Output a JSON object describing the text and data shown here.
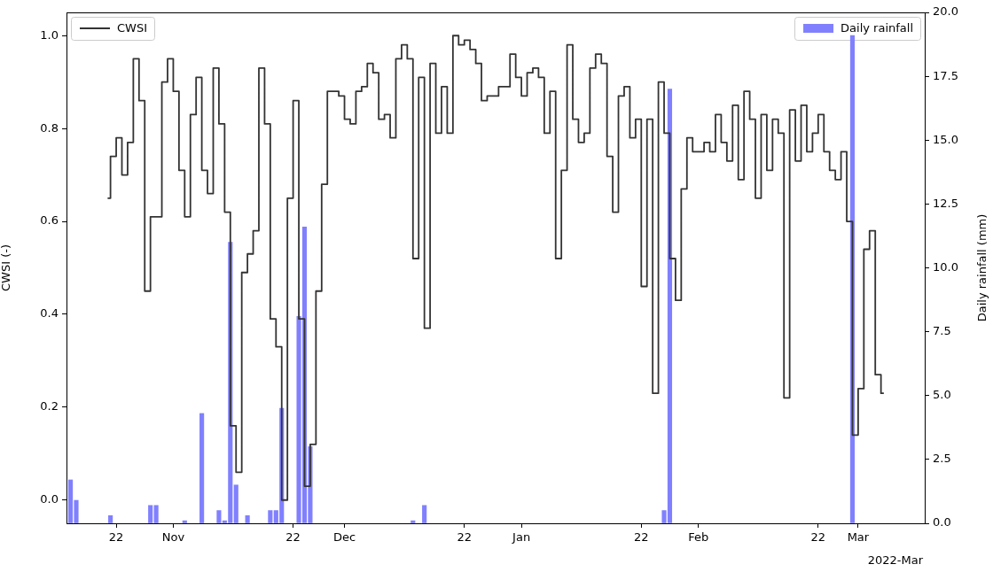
{
  "chart_data": {
    "type": "bar",
    "ylabel": "CWSI (-)",
    "y2label": "Daily rainfall (mm)",
    "grid": false,
    "legend": "top",
    "annotations": [
      "2022-Mar"
    ],
    "xlim": [
      "2021-10-13T07:00",
      "2022-03-12T16:00"
    ],
    "xticks": [
      {
        "value": "2021-10-22",
        "label": "22"
      },
      {
        "value": "2021-11-01",
        "label": "Nov"
      },
      {
        "value": "2021-11-22",
        "label": "22"
      },
      {
        "value": "2021-12-01",
        "label": "Dec"
      },
      {
        "value": "2021-12-22",
        "label": "22"
      },
      {
        "value": "2022-01-01",
        "label": "Jan"
      },
      {
        "value": "2022-01-22",
        "label": "22"
      },
      {
        "value": "2022-02-01",
        "label": "Feb"
      },
      {
        "value": "2022-02-22",
        "label": "22"
      },
      {
        "value": "2022-03-01",
        "label": "Mar"
      }
    ],
    "ylim": [
      -0.05,
      1.05
    ],
    "yticks": [
      {
        "value": 0,
        "label": "0.0"
      },
      {
        "value": 0.2,
        "label": "0.2"
      },
      {
        "value": 0.4,
        "label": "0.4"
      },
      {
        "value": 0.6,
        "label": "0.6"
      },
      {
        "value": 0.8,
        "label": "0.8"
      },
      {
        "value": 1,
        "label": "1.0"
      }
    ],
    "y2lim": [
      0,
      20
    ],
    "y2ticks": [
      {
        "value": 0,
        "label": "0.0"
      },
      {
        "value": 2.5,
        "label": "2.5"
      },
      {
        "value": 5,
        "label": "5.0"
      },
      {
        "value": 7.5,
        "label": "7.5"
      },
      {
        "value": 10,
        "label": "10.0"
      },
      {
        "value": 12.5,
        "label": "12.5"
      },
      {
        "value": 15,
        "label": "15.0"
      },
      {
        "value": 17.5,
        "label": "17.5"
      },
      {
        "value": 20,
        "label": "20.0"
      }
    ],
    "series": [
      {
        "name": "CWSI",
        "type": "step",
        "color": "#333333",
        "x": [
          "2021-10-20T12:00",
          "2021-10-21T12:00",
          "2021-10-22T12:00",
          "2021-10-23T12:00",
          "2021-10-24T12:00",
          "2021-10-25T12:00",
          "2021-10-26T12:00",
          "2021-10-27T12:00",
          "2021-10-28T12:00",
          "2021-10-29T12:00",
          "2021-10-30T12:00",
          "2021-10-31T12:00",
          "2021-11-01T12:00",
          "2021-11-02T12:00",
          "2021-11-03T12:00",
          "2021-11-04T12:00",
          "2021-11-05T12:00",
          "2021-11-06T12:00",
          "2021-11-07T12:00",
          "2021-11-08T12:00",
          "2021-11-09T12:00",
          "2021-11-10T12:00",
          "2021-11-11T12:00",
          "2021-11-12T12:00",
          "2021-11-13T12:00",
          "2021-11-14T12:00",
          "2021-11-15T12:00",
          "2021-11-16T12:00",
          "2021-11-17T12:00",
          "2021-11-18T12:00",
          "2021-11-19T12:00",
          "2021-11-20T12:00",
          "2021-11-21T12:00",
          "2021-11-22T12:00",
          "2021-11-23T12:00",
          "2021-11-24T12:00",
          "2021-11-25T12:00",
          "2021-11-26T12:00",
          "2021-11-27T12:00",
          "2021-11-28T12:00",
          "2021-11-29T12:00",
          "2021-11-30T12:00",
          "2021-12-01T12:00",
          "2021-12-02T12:00",
          "2021-12-03T12:00",
          "2021-12-04T12:00",
          "2021-12-05T12:00",
          "2021-12-06T12:00",
          "2021-12-07T12:00",
          "2021-12-08T12:00",
          "2021-12-09T12:00",
          "2021-12-10T12:00",
          "2021-12-11T12:00",
          "2021-12-12T12:00",
          "2021-12-13T12:00",
          "2021-12-14T12:00",
          "2021-12-15T12:00",
          "2021-12-16T12:00",
          "2021-12-17T12:00",
          "2021-12-18T12:00",
          "2021-12-19T12:00",
          "2021-12-20T12:00",
          "2021-12-21T12:00",
          "2021-12-22T12:00",
          "2021-12-23T12:00",
          "2021-12-24T12:00",
          "2021-12-25T12:00",
          "2021-12-26T12:00",
          "2021-12-27T12:00",
          "2021-12-28T12:00",
          "2021-12-29T12:00",
          "2021-12-30T12:00",
          "2021-12-31T12:00",
          "2022-01-01T12:00",
          "2022-01-02T12:00",
          "2022-01-03T12:00",
          "2022-01-04T12:00",
          "2022-01-05T12:00",
          "2022-01-06T12:00",
          "2022-01-07T12:00",
          "2022-01-08T12:00",
          "2022-01-09T12:00",
          "2022-01-10T12:00",
          "2022-01-11T12:00",
          "2022-01-12T12:00",
          "2022-01-13T12:00",
          "2022-01-14T12:00",
          "2022-01-15T12:00",
          "2022-01-16T12:00",
          "2022-01-17T12:00",
          "2022-01-18T12:00",
          "2022-01-19T12:00",
          "2022-01-20T12:00",
          "2022-01-21T12:00",
          "2022-01-22T12:00",
          "2022-01-23T12:00",
          "2022-01-24T12:00",
          "2022-01-25T12:00",
          "2022-01-26T12:00",
          "2022-01-27T12:00",
          "2022-01-28T12:00",
          "2022-01-29T12:00",
          "2022-01-30T12:00",
          "2022-01-31T12:00",
          "2022-02-01T12:00",
          "2022-02-02T12:00",
          "2022-02-03T12:00",
          "2022-02-04T12:00",
          "2022-02-05T12:00",
          "2022-02-06T12:00",
          "2022-02-07T12:00",
          "2022-02-08T12:00",
          "2022-02-09T12:00",
          "2022-02-10T12:00",
          "2022-02-11T12:00",
          "2022-02-12T12:00",
          "2022-02-13T12:00",
          "2022-02-14T12:00",
          "2022-02-15T12:00",
          "2022-02-16T12:00",
          "2022-02-17T12:00",
          "2022-02-18T12:00",
          "2022-02-19T12:00",
          "2022-02-20T12:00",
          "2022-02-21T12:00",
          "2022-02-22T12:00",
          "2022-02-23T12:00",
          "2022-02-24T12:00",
          "2022-02-25T12:00",
          "2022-02-26T12:00",
          "2022-02-27T12:00",
          "2022-02-28T12:00",
          "2022-03-01T12:00",
          "2022-03-02T12:00",
          "2022-03-03T12:00",
          "2022-03-04T12:00",
          "2022-03-05T12:00"
        ],
        "values": [
          0.65,
          0.74,
          0.78,
          0.7,
          0.77,
          0.95,
          0.86,
          0.45,
          0.61,
          0.61,
          0.9,
          0.95,
          0.88,
          0.71,
          0.61,
          0.83,
          0.91,
          0.71,
          0.66,
          0.93,
          0.81,
          0.62,
          0.16,
          0.06,
          0.49,
          0.53,
          0.58,
          0.93,
          0.81,
          0.39,
          0.33,
          0.0,
          0.65,
          0.86,
          0.39,
          0.03,
          0.12,
          0.45,
          0.68,
          0.88,
          0.88,
          0.87,
          0.82,
          0.81,
          0.88,
          0.89,
          0.94,
          0.92,
          0.82,
          0.83,
          0.78,
          0.95,
          0.98,
          0.95,
          0.52,
          0.91,
          0.37,
          0.94,
          0.79,
          0.89,
          0.79,
          1.0,
          0.98,
          0.99,
          0.97,
          0.94,
          0.86,
          0.87,
          0.87,
          0.89,
          0.89,
          0.96,
          0.91,
          0.87,
          0.92,
          0.93,
          0.91,
          0.79,
          0.88,
          0.52,
          0.71,
          0.98,
          0.82,
          0.77,
          0.79,
          0.93,
          0.96,
          0.94,
          0.74,
          0.62,
          0.87,
          0.89,
          0.78,
          0.82,
          0.46,
          0.82,
          0.23,
          0.9,
          0.79,
          0.52,
          0.43,
          0.67,
          0.78,
          0.75,
          0.75,
          0.77,
          0.75,
          0.83,
          0.77,
          0.73,
          0.85,
          0.69,
          0.88,
          0.82,
          0.65,
          0.83,
          0.71,
          0.82,
          0.79,
          0.22,
          0.84,
          0.73,
          0.85,
          0.75,
          0.79,
          0.83,
          0.75,
          0.71,
          0.69,
          0.75,
          0.6,
          0.14,
          0.24,
          0.54,
          0.58,
          0.27,
          0.23
        ]
      },
      {
        "name": "Daily rainfall",
        "axis": "y2",
        "color": "#8080ff",
        "x": [
          "2021-10-14",
          "2021-10-15",
          "2021-10-21",
          "2021-10-28",
          "2021-10-29",
          "2021-11-03",
          "2021-11-06",
          "2021-11-09",
          "2021-11-10",
          "2021-11-11",
          "2021-11-12",
          "2021-11-14",
          "2021-11-18",
          "2021-11-19",
          "2021-11-20",
          "2021-11-23",
          "2021-11-24",
          "2021-11-25",
          "2021-12-13",
          "2021-12-15",
          "2022-01-26",
          "2022-01-27",
          "2022-02-28"
        ],
        "values": [
          1.7,
          0.9,
          0.3,
          0.7,
          0.7,
          0.1,
          4.3,
          0.5,
          0.1,
          11.0,
          1.5,
          0.3,
          0.5,
          0.5,
          4.5,
          8.1,
          11.6,
          3.0,
          0.1,
          0.7,
          0.5,
          17.0,
          19.1
        ]
      }
    ]
  }
}
